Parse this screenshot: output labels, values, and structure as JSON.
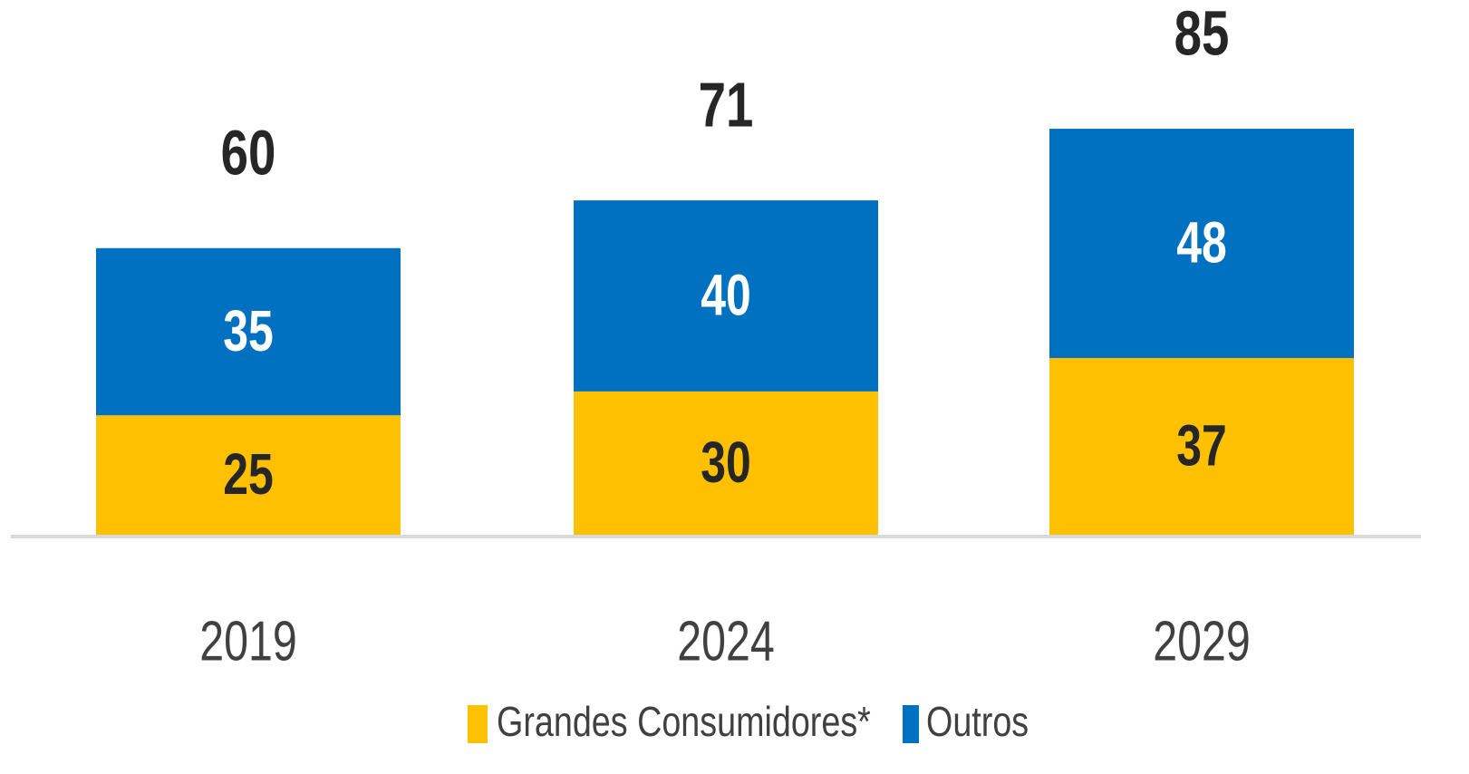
{
  "chart_data": {
    "type": "stacked_bar",
    "categories": [
      "2019",
      "2024",
      "2029"
    ],
    "series": [
      {
        "name": "Grandes Consumidores*",
        "color": "#FFC000",
        "values": [
          25,
          30,
          37
        ]
      },
      {
        "name": "Outros",
        "color": "#0070C0",
        "values": [
          35,
          40,
          48
        ]
      }
    ],
    "totals": [
      60,
      71,
      85
    ]
  }
}
